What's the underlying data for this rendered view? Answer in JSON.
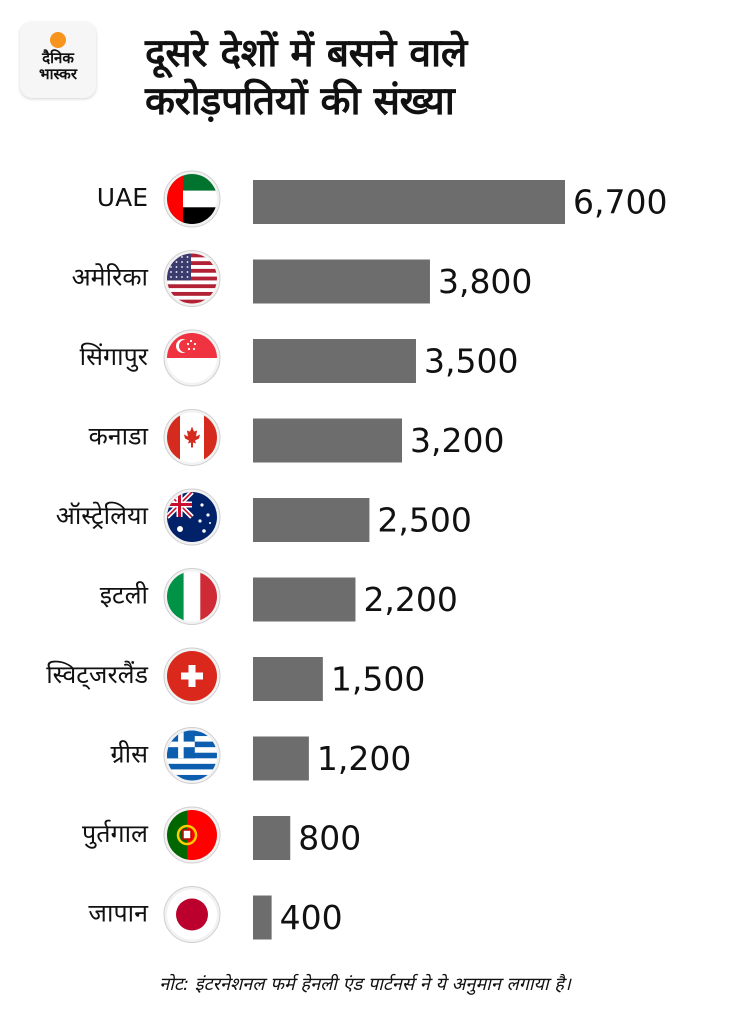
{
  "branding": {
    "logo_text": "दैनिक\nभास्कर",
    "sun_color": "#f7941d"
  },
  "title": "दूसरे देशों में बसने वाले\nकरोड़पतियों की संख्या",
  "note": "नोट: इंटरनेशनल फर्म हेनली एंड पार्टनर्स ने ये अनुमान लगाया है।",
  "chart_data": {
    "type": "bar",
    "orientation": "horizontal",
    "title": "दूसरे देशों में बसने वाले करोड़पतियों की संख्या",
    "categories": [
      "UAE",
      "अमेरिका",
      "सिंगापुर",
      "कनाडा",
      "ऑस्ट्रेलिया",
      "इटली",
      "स्विट्जरलैंड",
      "ग्रीस",
      "पुर्तगाल",
      "जापान"
    ],
    "values": [
      6700,
      3800,
      3500,
      3200,
      2500,
      2200,
      1500,
      1200,
      800,
      400
    ],
    "value_labels": [
      "6,700",
      "3,800",
      "3,500",
      "3,200",
      "2,500",
      "2,200",
      "1,500",
      "1,200",
      "800",
      "400"
    ],
    "flag_icons": [
      "uae-flag-icon",
      "usa-flag-icon",
      "singapore-flag-icon",
      "canada-flag-icon",
      "australia-flag-icon",
      "italy-flag-icon",
      "switzerland-flag-icon",
      "greece-flag-icon",
      "portugal-flag-icon",
      "japan-flag-icon"
    ],
    "bar_color": "#6d6d6d",
    "grid": false,
    "legend": "none"
  }
}
